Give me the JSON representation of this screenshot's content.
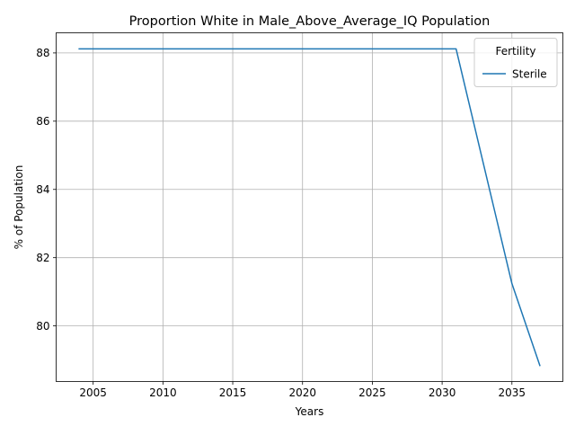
{
  "chart_data": {
    "type": "line",
    "title": "Proportion White in Male_Above_Average_IQ Population",
    "xlabel": "Years",
    "ylabel": "% of Population",
    "xlim": [
      2002.35,
      2038.65
    ],
    "ylim": [
      78.37,
      88.59
    ],
    "xticks": [
      2005,
      2010,
      2015,
      2020,
      2025,
      2030,
      2035
    ],
    "yticks": [
      80,
      82,
      84,
      86,
      88
    ],
    "grid": true,
    "legend": {
      "title": "Fertility",
      "position": "top-right"
    },
    "series": [
      {
        "name": "Sterile",
        "color": "#1f77b4",
        "x": [
          2004,
          2005,
          2006,
          2007,
          2008,
          2009,
          2010,
          2011,
          2012,
          2013,
          2014,
          2015,
          2016,
          2017,
          2018,
          2019,
          2020,
          2021,
          2022,
          2023,
          2024,
          2025,
          2026,
          2027,
          2028,
          2029,
          2030,
          2031,
          2032,
          2033,
          2034,
          2035,
          2036,
          2037
        ],
        "y": [
          88.12,
          88.12,
          88.12,
          88.12,
          88.12,
          88.12,
          88.12,
          88.12,
          88.12,
          88.12,
          88.12,
          88.12,
          88.12,
          88.12,
          88.12,
          88.12,
          88.12,
          88.12,
          88.12,
          88.12,
          88.12,
          88.12,
          88.12,
          88.12,
          88.12,
          88.12,
          88.12,
          88.12,
          86.4,
          84.68,
          82.96,
          81.24,
          80.04,
          78.84
        ]
      }
    ]
  }
}
